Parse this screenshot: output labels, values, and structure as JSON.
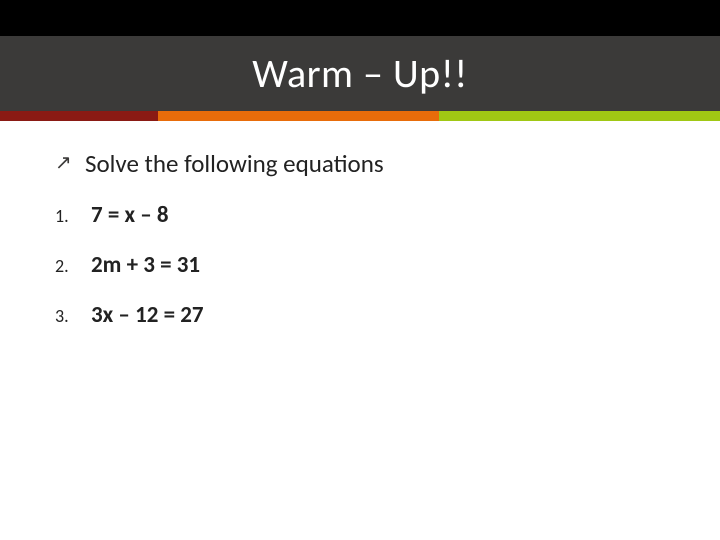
{
  "colors": {
    "title_band_bg": "#3b3a39",
    "title_text": "#ffffff",
    "arrow": "#3b3a39",
    "body_text": "#222222",
    "strip": [
      "#8a1a14",
      "#e86c0a",
      "#a0c814"
    ],
    "strip_widths": [
      "22%",
      "39%",
      "39%"
    ]
  },
  "title": "Warm – Up!!",
  "lead": {
    "text": "Solve the following equations"
  },
  "items": [
    {
      "num": "1.",
      "text": "7 = x – 8"
    },
    {
      "num": "2.",
      "text": "2m + 3 = 31"
    },
    {
      "num": "3.",
      "text": "3x – 12 = 27"
    }
  ],
  "typography": {
    "title_fontsize": 40,
    "lead_fontsize": 25,
    "item_fontsize": 23,
    "num_fontsize": 18
  }
}
